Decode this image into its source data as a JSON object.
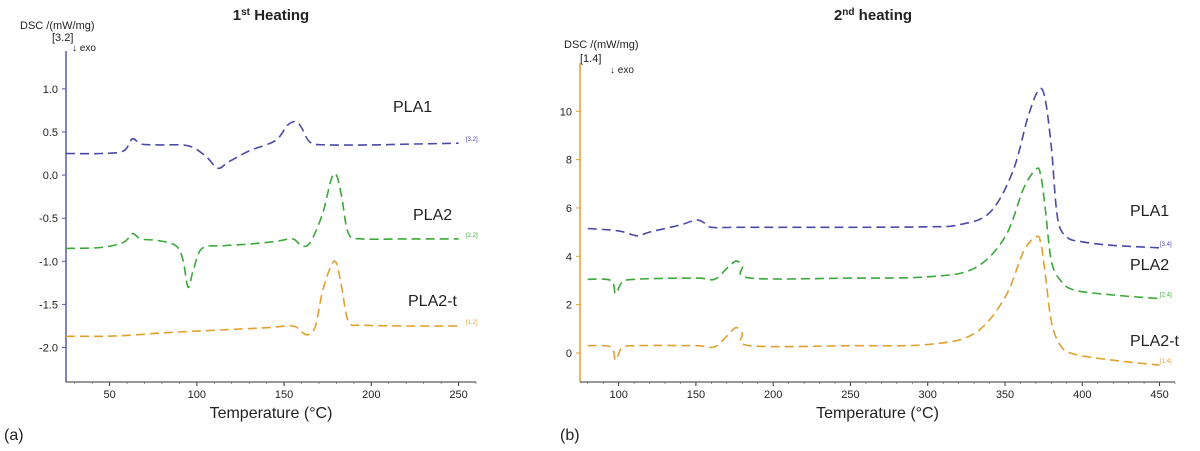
{
  "chart_data": [
    {
      "type": "line",
      "panel_label": "(a)",
      "title": "1",
      "title_sup": "st",
      "title_rest": " Heating",
      "ylabel": "DSC /(mW/mg)",
      "y_scale_marker": "[3.2]",
      "exo_label": "↓ exo",
      "xlabel": "Temperature (°C)",
      "xlim": [
        25,
        260
      ],
      "ylim": [
        -2.4,
        1.3
      ],
      "x_ticks": [
        "50",
        "100",
        "150",
        "200",
        "250"
      ],
      "y_ticks": [
        "1.0",
        "0.5",
        "0.0",
        "-0.5",
        "-1.0",
        "-1.5",
        "-2.0"
      ],
      "series": [
        {
          "name": "PLA1",
          "color": "#4a4aa8",
          "end_tag": "[3.2]",
          "x": [
            25,
            45,
            58,
            63,
            68,
            78,
            95,
            105,
            112,
            118,
            130,
            145,
            152,
            157,
            160,
            165,
            175,
            200,
            225,
            250
          ],
          "y": [
            0.25,
            0.25,
            0.28,
            0.42,
            0.36,
            0.35,
            0.34,
            0.22,
            0.08,
            0.15,
            0.28,
            0.4,
            0.58,
            0.62,
            0.55,
            0.38,
            0.35,
            0.35,
            0.36,
            0.37
          ]
        },
        {
          "name": "PLA2",
          "color": "#3aa83a",
          "end_tag": "[2.2]",
          "x": [
            25,
            45,
            58,
            63,
            68,
            78,
            88,
            92,
            95,
            98,
            103,
            115,
            130,
            145,
            155,
            160,
            165,
            172,
            177,
            180,
            183,
            187,
            195,
            220,
            250
          ],
          "y": [
            -0.85,
            -0.84,
            -0.78,
            -0.68,
            -0.74,
            -0.76,
            -0.82,
            -0.98,
            -1.3,
            -1.1,
            -0.85,
            -0.82,
            -0.8,
            -0.77,
            -0.74,
            -0.82,
            -0.78,
            -0.45,
            -0.05,
            0.0,
            -0.25,
            -0.68,
            -0.74,
            -0.74,
            -0.74
          ]
        },
        {
          "name": "PLA2-t",
          "color": "#e0a030",
          "end_tag": "[1.2]",
          "x": [
            25,
            45,
            60,
            80,
            100,
            120,
            140,
            155,
            160,
            164,
            168,
            172,
            177,
            180,
            183,
            187,
            195,
            220,
            250
          ],
          "y": [
            -1.87,
            -1.87,
            -1.86,
            -1.83,
            -1.81,
            -1.79,
            -1.77,
            -1.75,
            -1.82,
            -1.85,
            -1.75,
            -1.35,
            -1.05,
            -1.02,
            -1.3,
            -1.7,
            -1.74,
            -1.75,
            -1.75
          ]
        }
      ]
    },
    {
      "type": "line",
      "panel_label": "(b)",
      "title": "2",
      "title_sup": "nd",
      "title_rest": " heating",
      "ylabel": "DSC /(mW/mg)",
      "y_scale_marker": "[1.4]",
      "exo_label": "↓ exo",
      "xlabel": "Temperature (°C)",
      "xlim": [
        75,
        460
      ],
      "ylim": [
        -1.2,
        11.5
      ],
      "x_ticks": [
        "100",
        "150",
        "200",
        "250",
        "300",
        "350",
        "400",
        "450"
      ],
      "y_ticks": [
        "10",
        "8",
        "6",
        "4",
        "2",
        "0"
      ],
      "series": [
        {
          "name": "PLA1",
          "color": "#4a4aa8",
          "end_tag": "[3.4]",
          "x": [
            80,
            100,
            112,
            120,
            140,
            150,
            155,
            160,
            180,
            250,
            300,
            320,
            340,
            355,
            365,
            372,
            376,
            380,
            384,
            390,
            400,
            420,
            450
          ],
          "y": [
            5.15,
            5.05,
            4.85,
            5.0,
            5.3,
            5.5,
            5.4,
            5.2,
            5.2,
            5.2,
            5.22,
            5.3,
            5.8,
            7.5,
            9.8,
            10.9,
            10.5,
            8.5,
            5.6,
            4.8,
            4.6,
            4.45,
            4.35
          ]
        },
        {
          "name": "PLA2",
          "color": "#3aa83a",
          "end_tag": "[2.4]",
          "x": [
            80,
            95,
            98,
            102,
            110,
            150,
            162,
            170,
            176,
            180,
            185,
            250,
            300,
            330,
            350,
            362,
            370,
            373,
            376,
            380,
            386,
            395,
            420,
            450
          ],
          "y": [
            3.05,
            3.0,
            2.45,
            2.9,
            3.05,
            3.1,
            3.05,
            3.5,
            3.8,
            3.6,
            3.1,
            3.1,
            3.15,
            3.5,
            4.8,
            6.8,
            7.6,
            7.4,
            6.0,
            3.8,
            3.0,
            2.6,
            2.4,
            2.25
          ]
        },
        {
          "name": "PLA2-t",
          "color": "#e0a030",
          "end_tag": "[1.4]",
          "x": [
            80,
            95,
            98,
            102,
            110,
            150,
            162,
            170,
            176,
            180,
            185,
            250,
            300,
            330,
            350,
            362,
            370,
            373,
            376,
            380,
            386,
            395,
            420,
            450
          ],
          "y": [
            0.3,
            0.25,
            -0.3,
            0.2,
            0.3,
            0.3,
            0.25,
            0.7,
            1.05,
            0.8,
            0.3,
            0.3,
            0.35,
            0.8,
            2.3,
            4.2,
            4.8,
            4.6,
            3.3,
            1.3,
            0.3,
            -0.05,
            -0.3,
            -0.5
          ]
        }
      ]
    }
  ]
}
